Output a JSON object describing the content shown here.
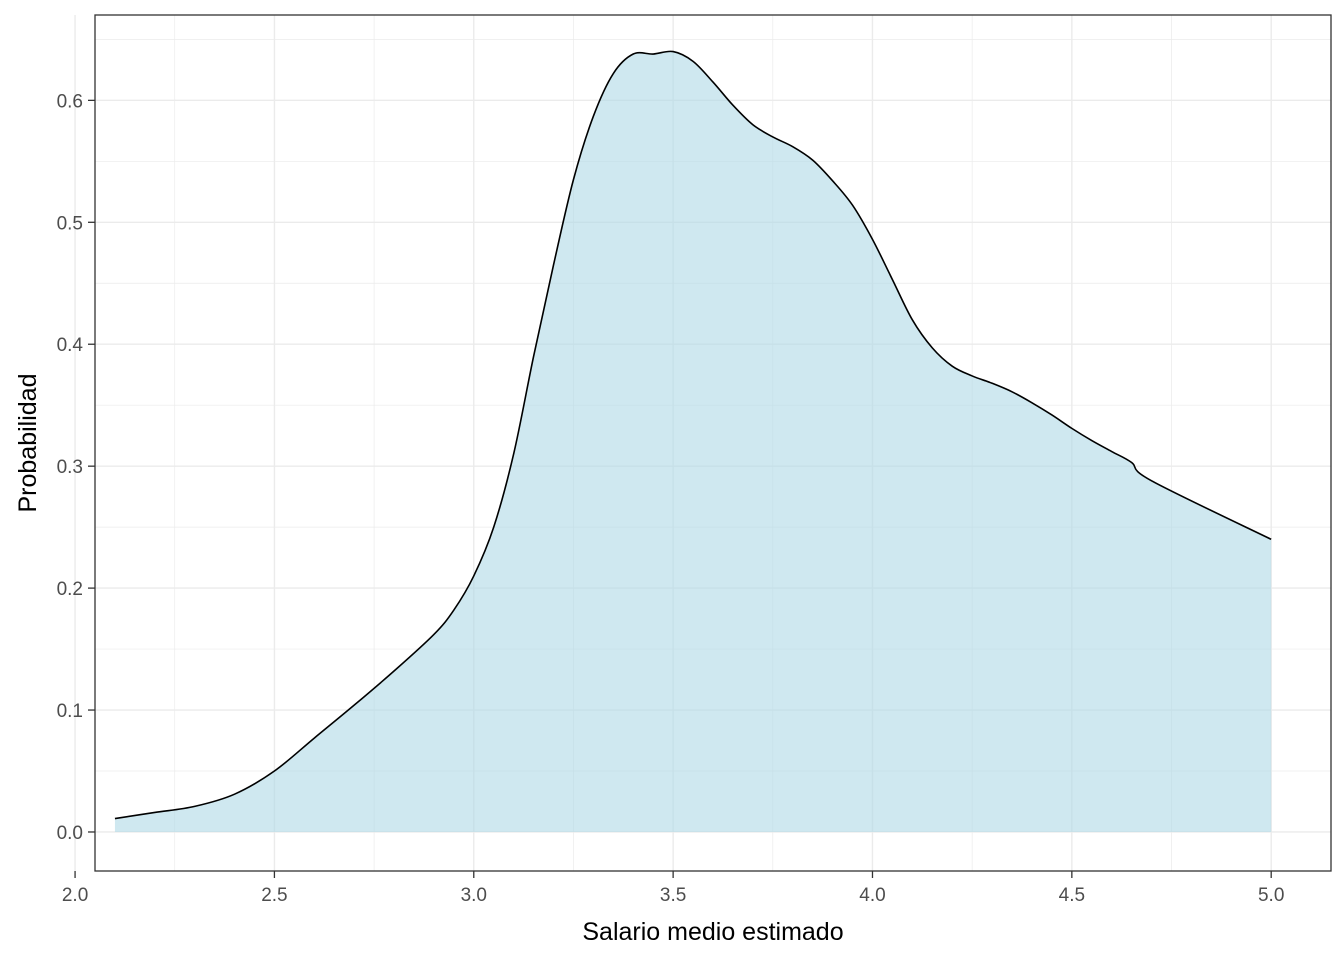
{
  "chart_data": {
    "type": "area",
    "title": "",
    "xlabel": "Salario medio estimado",
    "ylabel": "Probabilidad",
    "xlim": [
      2.05,
      5.15
    ],
    "ylim": [
      -0.032,
      0.67
    ],
    "x_ticks": [
      2.0,
      2.5,
      3.0,
      3.5,
      4.0,
      4.5,
      5.0
    ],
    "x_tick_labels": [
      "2.0",
      "2.5",
      "3.0",
      "3.5",
      "4.0",
      "4.5",
      "5.0"
    ],
    "y_ticks": [
      0.0,
      0.1,
      0.2,
      0.3,
      0.4,
      0.5,
      0.6
    ],
    "y_tick_labels": [
      "0.0",
      "0.1",
      "0.2",
      "0.3",
      "0.4",
      "0.5",
      "0.6"
    ],
    "grid": true,
    "theme": "bw",
    "colors": {
      "fill": "#add8e6",
      "line": "#000000",
      "grid": "#ebebeb",
      "border": "#333333"
    },
    "series": [
      {
        "x": [
          2.1,
          2.2,
          2.3,
          2.4,
          2.5,
          2.6,
          2.7,
          2.8,
          2.9,
          2.95,
          3.0,
          3.05,
          3.1,
          3.15,
          3.2,
          3.25,
          3.3,
          3.35,
          3.4,
          3.45,
          3.5,
          3.55,
          3.6,
          3.65,
          3.7,
          3.75,
          3.8,
          3.85,
          3.9,
          3.95,
          4.0,
          4.05,
          4.1,
          4.15,
          4.2,
          4.25,
          4.3,
          4.35,
          4.4,
          4.45,
          4.5,
          4.55,
          4.6,
          4.65,
          4.7,
          4.75,
          4.8,
          4.85,
          4.9,
          4.95,
          5.0
        ],
        "y": [
          0.011,
          0.016,
          0.021,
          0.031,
          0.05,
          0.077,
          0.104,
          0.132,
          0.162,
          0.182,
          0.21,
          0.25,
          0.31,
          0.39,
          0.465,
          0.535,
          0.587,
          0.622,
          0.638,
          0.638,
          0.64,
          0.632,
          0.615,
          0.596,
          0.58,
          0.57,
          0.562,
          0.551,
          0.534,
          0.514,
          0.486,
          0.453,
          0.42,
          0.397,
          0.382,
          0.374,
          0.368,
          0.361,
          0.352,
          0.342,
          0.331,
          0.321,
          0.312,
          0.303,
          0.288,
          0.24,
          0.24,
          0.24,
          0.24,
          0.24,
          0.24
        ]
      }
    ]
  }
}
